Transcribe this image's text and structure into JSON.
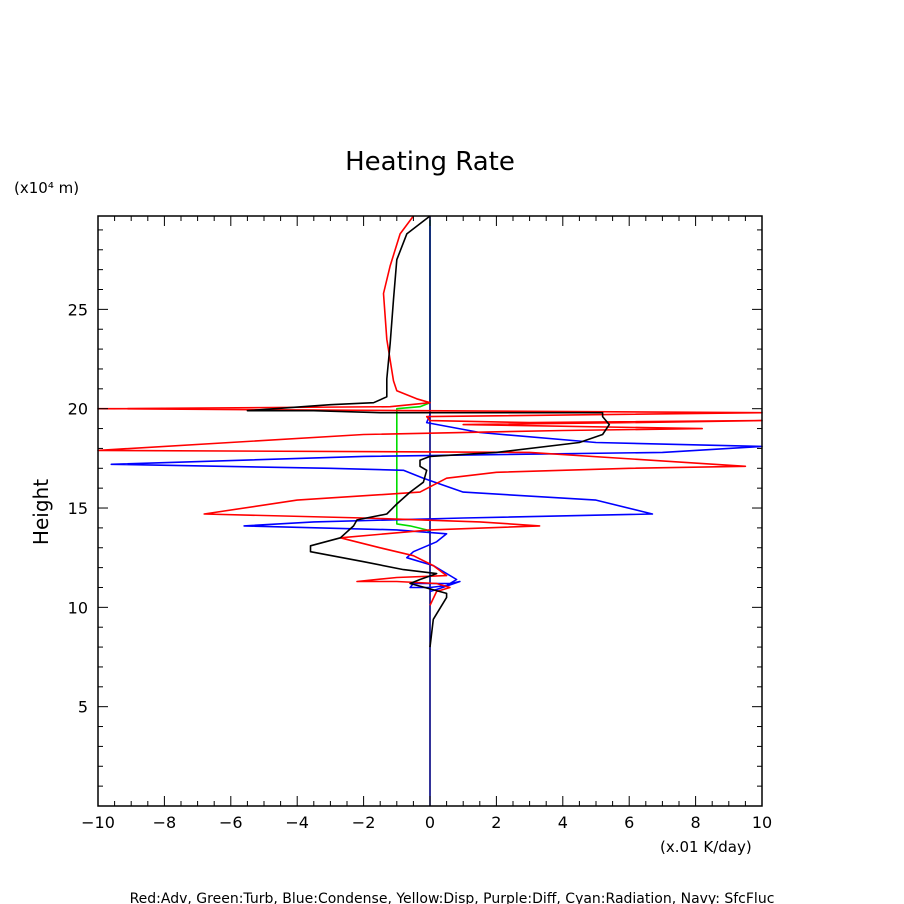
{
  "chart_data": {
    "type": "line",
    "title": "Heating Rate",
    "ylabel": "Height",
    "y_unit": "(x10⁴ m)",
    "x_unit": "(x.01 K/day)",
    "footer_caption": "Red:Adv, Green:Turb, Blue:Condense, Yellow:Disp, Purple:Diff, Cyan:Radiation, Navy: SfcFluc",
    "xlim": [
      -10,
      10
    ],
    "ylim": [
      0,
      29.7
    ],
    "x_ticks": [
      -10,
      -8,
      -6,
      -4,
      -2,
      0,
      2,
      4,
      6,
      8,
      10
    ],
    "y_ticks": [
      5,
      10,
      15,
      20,
      25
    ],
    "grid": false,
    "series": [
      {
        "name": "Turb",
        "color": "#00dd00",
        "points": [
          [
            0,
            29.5
          ],
          [
            0,
            20.3
          ],
          [
            -0.3,
            20.1
          ],
          [
            -1.0,
            20.0
          ],
          [
            -1.0,
            14.2
          ],
          [
            -0.6,
            14.1
          ],
          [
            -0.1,
            13.9
          ],
          [
            0,
            13.8
          ]
        ]
      },
      {
        "name": "SfcFluc",
        "color": "#000080",
        "points": [
          [
            0,
            0
          ],
          [
            0,
            29.7
          ]
        ]
      },
      {
        "name": "Condense",
        "color": "#0000ff",
        "points": [
          [
            0,
            19.7
          ],
          [
            -0.1,
            19.3
          ],
          [
            1.5,
            18.8
          ],
          [
            5.0,
            18.3
          ],
          [
            10,
            18.1
          ],
          [
            7.0,
            17.8
          ],
          [
            -2.0,
            17.6
          ],
          [
            -9.6,
            17.2
          ],
          [
            -3.0,
            17.0
          ],
          [
            -0.8,
            16.9
          ],
          [
            -0.2,
            16.5
          ],
          [
            1.0,
            15.8
          ],
          [
            5.0,
            15.4
          ],
          [
            6.7,
            14.7
          ],
          [
            1.0,
            14.5
          ],
          [
            -3.5,
            14.3
          ],
          [
            -5.6,
            14.1
          ],
          [
            -1.0,
            13.9
          ],
          [
            0.5,
            13.7
          ],
          [
            0.2,
            13.3
          ],
          [
            -0.5,
            12.8
          ],
          [
            -0.7,
            12.5
          ],
          [
            0.1,
            12.1
          ],
          [
            0.8,
            11.4
          ],
          [
            0.5,
            11.1
          ],
          [
            0,
            11.0
          ],
          [
            -0.6,
            11.0
          ],
          [
            -0.5,
            11.2
          ],
          [
            0.6,
            11.2
          ],
          [
            0.9,
            11.3
          ],
          [
            0.2,
            10.9
          ],
          [
            0,
            10.8
          ]
        ]
      },
      {
        "name": "Adv",
        "color": "#ff0000",
        "points": [
          [
            -0.5,
            29.7
          ],
          [
            -0.9,
            28.8
          ],
          [
            -1.2,
            27.2
          ],
          [
            -1.4,
            25.8
          ],
          [
            -1.3,
            23.5
          ],
          [
            -1.1,
            21.4
          ],
          [
            -1.0,
            20.9
          ],
          [
            -0.4,
            20.5
          ],
          [
            0,
            20.3
          ],
          [
            -1.2,
            20.1
          ],
          [
            -10,
            20.0
          ],
          [
            10,
            19.8
          ],
          [
            -0.1,
            19.6
          ],
          [
            0,
            19.4
          ],
          [
            3.0,
            19.3
          ],
          [
            10,
            19.4
          ],
          [
            6.0,
            19.3
          ],
          [
            1.0,
            19.2
          ],
          [
            8.2,
            19.0
          ],
          [
            4.0,
            18.9
          ],
          [
            -2.0,
            18.7
          ],
          [
            -10,
            17.9
          ],
          [
            3.0,
            17.8
          ],
          [
            9.5,
            17.1
          ],
          [
            6.0,
            17.0
          ],
          [
            2.0,
            16.8
          ],
          [
            0.5,
            16.5
          ],
          [
            -0.3,
            15.8
          ],
          [
            -4.0,
            15.4
          ],
          [
            -6.8,
            14.7
          ],
          [
            -2.0,
            14.5
          ],
          [
            1.5,
            14.3
          ],
          [
            3.3,
            14.1
          ],
          [
            0,
            13.9
          ],
          [
            -2.7,
            13.5
          ],
          [
            -1.5,
            13.0
          ],
          [
            -0.5,
            12.6
          ],
          [
            0.1,
            12.1
          ],
          [
            0.5,
            11.6
          ],
          [
            -1.0,
            11.5
          ],
          [
            -2.2,
            11.3
          ],
          [
            -1.0,
            11.3
          ],
          [
            0.2,
            11.2
          ],
          [
            0.6,
            11.0
          ],
          [
            0.2,
            10.8
          ],
          [
            0,
            10.1
          ]
        ]
      },
      {
        "name": "",
        "color": "#000000",
        "points": [
          [
            0,
            29.7
          ],
          [
            -0.7,
            28.8
          ],
          [
            -1.0,
            27.5
          ],
          [
            -1.1,
            25.5
          ],
          [
            -1.2,
            23.3
          ],
          [
            -1.3,
            21.5
          ],
          [
            -1.3,
            20.6
          ],
          [
            -1.7,
            20.3
          ],
          [
            -3.0,
            20.2
          ],
          [
            -5.5,
            19.9
          ],
          [
            -3.5,
            19.9
          ],
          [
            -1.5,
            19.8
          ],
          [
            -0.4,
            19.8
          ],
          [
            0.2,
            19.8
          ],
          [
            3.0,
            19.8
          ],
          [
            5.2,
            19.8
          ],
          [
            5.2,
            19.6
          ],
          [
            5.4,
            19.2
          ],
          [
            5.2,
            18.7
          ],
          [
            4.5,
            18.3
          ],
          [
            2.0,
            17.8
          ],
          [
            0,
            17.6
          ],
          [
            -0.3,
            17.4
          ],
          [
            -0.3,
            17.1
          ],
          [
            -0.1,
            16.9
          ],
          [
            -0.2,
            16.3
          ],
          [
            -0.6,
            15.8
          ],
          [
            -1.0,
            15.2
          ],
          [
            -1.3,
            14.7
          ],
          [
            -2.2,
            14.4
          ],
          [
            -2.3,
            14.1
          ],
          [
            -2.7,
            13.5
          ],
          [
            -3.6,
            13.1
          ],
          [
            -3.6,
            12.8
          ],
          [
            -2.0,
            12.3
          ],
          [
            -0.8,
            11.9
          ],
          [
            0.2,
            11.7
          ],
          [
            -0.3,
            11.4
          ],
          [
            -0.6,
            11.2
          ],
          [
            0.5,
            10.7
          ],
          [
            0.5,
            10.5
          ],
          [
            0.1,
            9.4
          ],
          [
            0,
            8.0
          ]
        ]
      }
    ]
  }
}
